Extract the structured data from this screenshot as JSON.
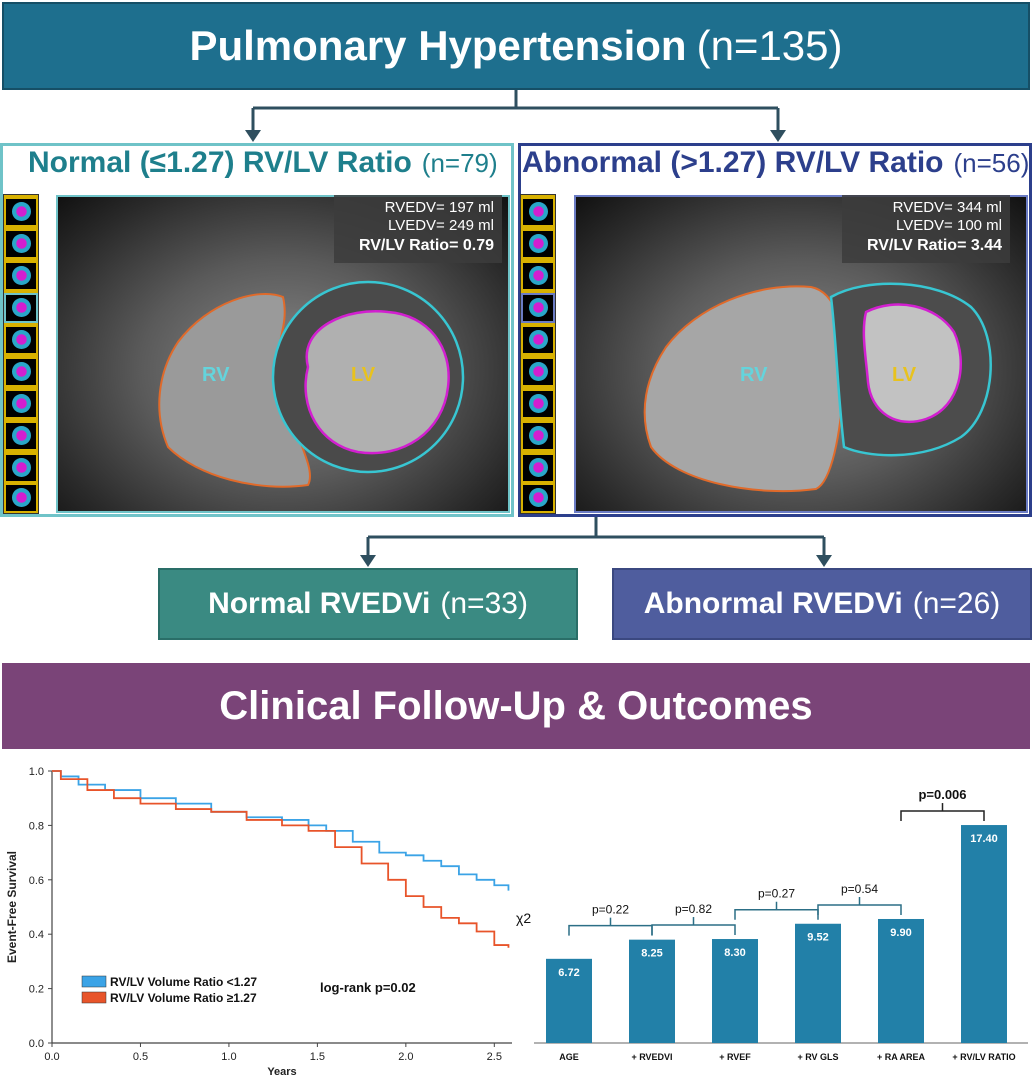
{
  "title": {
    "main": "Pulmonary Hypertension",
    "n": "(n=135)"
  },
  "left_panel": {
    "heading": "Normal (≤1.27) RV/LV Ratio",
    "n": "(n=79)",
    "rvedv": "RVEDV= 197 ml",
    "lvedv": "LVEDV= 249 ml",
    "ratio": "RV/LV Ratio= 0.79",
    "rv_label": "RV",
    "lv_label": "LV",
    "color": "#1e7f8c"
  },
  "right_panel": {
    "heading": "Abnormal (>1.27) RV/LV Ratio",
    "n": "(n=56)",
    "rvedv": "RVEDV= 344 ml",
    "lvedv": "LVEDV= 100 ml",
    "ratio": "RV/LV Ratio= 3.44",
    "rv_label": "RV",
    "lv_label": "LV",
    "color": "#2c3f8c"
  },
  "subgroups": {
    "normal": {
      "label": "Normal RVEDVi",
      "n": "(n=33)",
      "color": "#3a8a82"
    },
    "abnormal": {
      "label": "Abnormal RVEDVi",
      "n": "(n=26)",
      "color": "#4f5d9e"
    }
  },
  "clinical": {
    "label": "Clinical Follow-Up & Outcomes"
  },
  "chart_data": [
    {
      "type": "line",
      "xlabel": "Years",
      "ylabel": "Event-Free Survival",
      "xlim": [
        0,
        2.6
      ],
      "ylim": [
        0,
        1.0
      ],
      "xticks": [
        "0.0",
        "0.5",
        "1.0",
        "1.5",
        "2.0",
        "2.5"
      ],
      "yticks": [
        "0.0",
        "0.2",
        "0.4",
        "0.6",
        "0.8",
        "1.0"
      ],
      "annotation": "log-rank p=0.02",
      "series": [
        {
          "name": "RV/LV Volume Ratio <1.27",
          "color": "#3ba3e6",
          "x": [
            0,
            0.05,
            0.15,
            0.3,
            0.5,
            0.7,
            0.9,
            1.1,
            1.3,
            1.45,
            1.55,
            1.7,
            1.85,
            2.0,
            2.1,
            2.2,
            2.3,
            2.4,
            2.5,
            2.58
          ],
          "y": [
            1.0,
            0.98,
            0.95,
            0.93,
            0.9,
            0.88,
            0.85,
            0.83,
            0.82,
            0.8,
            0.78,
            0.74,
            0.7,
            0.69,
            0.67,
            0.65,
            0.62,
            0.6,
            0.58,
            0.56
          ]
        },
        {
          "name": "RV/LV Volume Ratio ≥1.27",
          "color": "#e8542a",
          "x": [
            0,
            0.05,
            0.2,
            0.35,
            0.5,
            0.7,
            0.9,
            1.1,
            1.3,
            1.45,
            1.6,
            1.75,
            1.9,
            2.0,
            2.1,
            2.2,
            2.3,
            2.4,
            2.5,
            2.58
          ],
          "y": [
            1.0,
            0.97,
            0.93,
            0.9,
            0.88,
            0.86,
            0.85,
            0.82,
            0.8,
            0.78,
            0.72,
            0.66,
            0.6,
            0.54,
            0.5,
            0.46,
            0.44,
            0.41,
            0.36,
            0.35
          ]
        }
      ],
      "side_label": "χ2"
    },
    {
      "type": "bar",
      "categories": [
        "AGE",
        "+ RVEDVI",
        "+ RVEF",
        "+ RV GLS",
        "+ RA AREA",
        "+ RV/LV RATIO"
      ],
      "values": [
        6.72,
        8.25,
        8.3,
        9.52,
        9.9,
        17.4
      ],
      "value_labels": [
        "6.72",
        "8.25",
        "8.30",
        "9.52",
        "9.90",
        "17.40"
      ],
      "ylim": [
        0,
        19
      ],
      "color": "#2280a8",
      "comparisons": [
        {
          "from": 0,
          "to": 1,
          "label": "p=0.22",
          "bold": false
        },
        {
          "from": 1,
          "to": 2,
          "label": "p=0.82",
          "bold": false
        },
        {
          "from": 2,
          "to": 3,
          "label": "p=0.27",
          "bold": false
        },
        {
          "from": 3,
          "to": 4,
          "label": "p=0.54",
          "bold": false
        },
        {
          "from": 4,
          "to": 5,
          "label": "p=0.006",
          "bold": true
        }
      ]
    }
  ]
}
